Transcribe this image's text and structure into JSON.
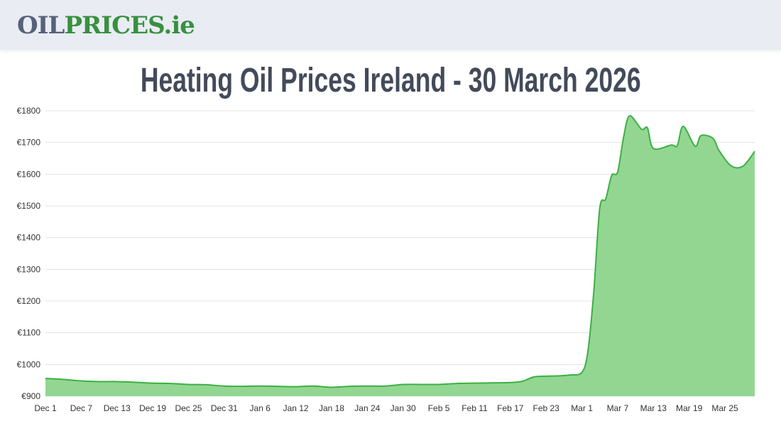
{
  "header": {
    "logo_text": "OILPRICES.ie",
    "logo_part1": "OIL",
    "logo_part2": "PRICES.ie"
  },
  "page_title": "Heating Oil Prices Ireland - 30 March 2026",
  "colors": {
    "line": "#3cb043",
    "fill": "#92d692",
    "grid": "#e3e3e3",
    "logo_dark": "#56627a",
    "logo_green": "#38903f",
    "title": "#434b5a"
  },
  "chart_data": {
    "type": "area",
    "title": "",
    "xlabel": "",
    "ylabel": "",
    "currency": "€",
    "ylim": [
      900,
      1800
    ],
    "y_ticks": [
      "€900",
      "€1000",
      "€1100",
      "€1200",
      "€1300",
      "€1400",
      "€1500",
      "€1600",
      "€1700",
      "€1800"
    ],
    "y_tick_values": [
      900,
      1000,
      1100,
      1200,
      1300,
      1400,
      1500,
      1600,
      1700,
      1800
    ],
    "x_range": [
      "2025-12-01",
      "2026-03-30"
    ],
    "x_ticks": [
      {
        "date": "2025-12-01",
        "label": "Dec 1"
      },
      {
        "date": "2025-12-07",
        "label": "Dec 7"
      },
      {
        "date": "2025-12-13",
        "label": "Dec 13"
      },
      {
        "date": "2025-12-19",
        "label": "Dec 19"
      },
      {
        "date": "2025-12-25",
        "label": "Dec 25"
      },
      {
        "date": "2025-12-31",
        "label": "Dec 31"
      },
      {
        "date": "2026-01-06",
        "label": "Jan 6"
      },
      {
        "date": "2026-01-12",
        "label": "Jan 12"
      },
      {
        "date": "2026-01-18",
        "label": "Jan 18"
      },
      {
        "date": "2026-01-24",
        "label": "Jan 24"
      },
      {
        "date": "2026-01-30",
        "label": "Jan 30"
      },
      {
        "date": "2026-02-05",
        "label": "Feb 5"
      },
      {
        "date": "2026-02-11",
        "label": "Feb 11"
      },
      {
        "date": "2026-02-17",
        "label": "Feb 17"
      },
      {
        "date": "2026-02-23",
        "label": "Feb 23"
      },
      {
        "date": "2026-03-01",
        "label": "Mar 1"
      },
      {
        "date": "2026-03-07",
        "label": "Mar 7"
      },
      {
        "date": "2026-03-13",
        "label": "Mar 13"
      },
      {
        "date": "2026-03-19",
        "label": "Mar 19"
      },
      {
        "date": "2026-03-25",
        "label": "Mar 25"
      }
    ],
    "grid": true,
    "legend": "none",
    "points": [
      [
        "2025-12-01",
        956
      ],
      [
        "2025-12-04",
        953
      ],
      [
        "2025-12-07",
        948
      ],
      [
        "2025-12-10",
        946
      ],
      [
        "2025-12-13",
        946
      ],
      [
        "2025-12-16",
        944
      ],
      [
        "2025-12-19",
        941
      ],
      [
        "2025-12-22",
        940
      ],
      [
        "2025-12-25",
        937
      ],
      [
        "2025-12-28",
        936
      ],
      [
        "2025-12-31",
        932
      ],
      [
        "2026-01-03",
        931
      ],
      [
        "2026-01-06",
        932
      ],
      [
        "2026-01-09",
        931
      ],
      [
        "2026-01-12",
        930
      ],
      [
        "2026-01-15",
        932
      ],
      [
        "2026-01-18",
        928
      ],
      [
        "2026-01-21",
        931
      ],
      [
        "2026-01-24",
        932
      ],
      [
        "2026-01-27",
        932
      ],
      [
        "2026-01-30",
        937
      ],
      [
        "2026-02-02",
        937
      ],
      [
        "2026-02-05",
        937
      ],
      [
        "2026-02-08",
        940
      ],
      [
        "2026-02-11",
        941
      ],
      [
        "2026-02-14",
        942
      ],
      [
        "2026-02-17",
        943
      ],
      [
        "2026-02-19",
        947
      ],
      [
        "2026-02-21",
        961
      ],
      [
        "2026-02-23",
        963
      ],
      [
        "2026-02-25",
        964
      ],
      [
        "2026-02-27",
        967
      ],
      [
        "2026-03-01",
        975
      ],
      [
        "2026-03-02",
        1040
      ],
      [
        "2026-03-03",
        1230
      ],
      [
        "2026-03-04",
        1493
      ],
      [
        "2026-03-05",
        1522
      ],
      [
        "2026-03-06",
        1596
      ],
      [
        "2026-03-07",
        1607
      ],
      [
        "2026-03-08",
        1717
      ],
      [
        "2026-03-09",
        1784
      ],
      [
        "2026-03-11",
        1742
      ],
      [
        "2026-03-12",
        1746
      ],
      [
        "2026-03-13",
        1681
      ],
      [
        "2026-03-16",
        1692
      ],
      [
        "2026-03-17",
        1690
      ],
      [
        "2026-03-18",
        1751
      ],
      [
        "2026-03-20",
        1688
      ],
      [
        "2026-03-21",
        1722
      ],
      [
        "2026-03-23",
        1713
      ],
      [
        "2026-03-24",
        1675
      ],
      [
        "2026-03-26",
        1627
      ],
      [
        "2026-03-28",
        1625
      ],
      [
        "2026-03-30",
        1672
      ]
    ]
  }
}
